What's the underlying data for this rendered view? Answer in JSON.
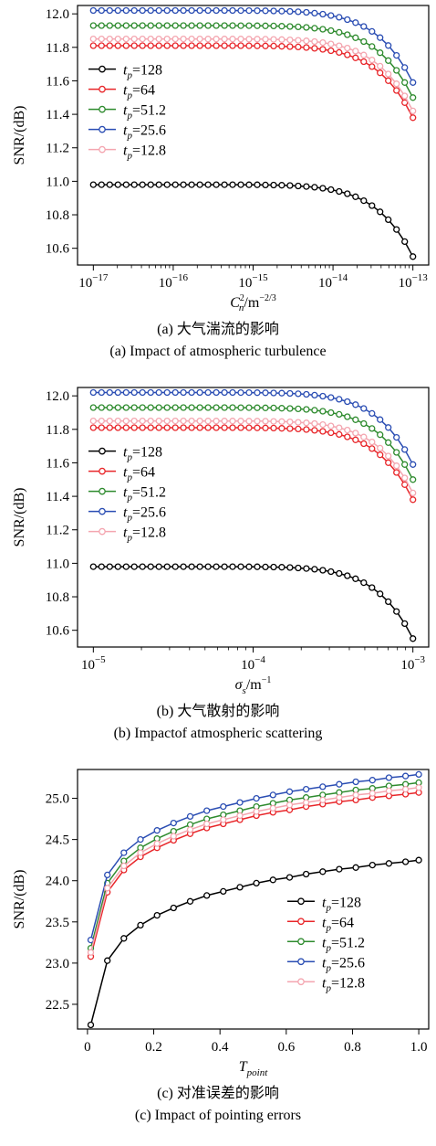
{
  "series_styles": [
    {
      "color": "#000000"
    },
    {
      "color": "#e8262a"
    },
    {
      "color": "#2e8b2e"
    },
    {
      "color": "#2a4db3"
    },
    {
      "color": "#f4a6b0"
    }
  ],
  "chart_data": [
    {
      "type": "line",
      "xscale": "log",
      "x_exp_range": [
        -17,
        -13
      ],
      "x_ticks": [
        -17,
        -16,
        -15,
        -14,
        -13
      ],
      "x_tick_labels": [
        "10",
        "10",
        "10",
        "10",
        "10"
      ],
      "x_tick_exps": [
        "−17",
        "−16",
        "−15",
        "−14",
        "−13"
      ],
      "ylim": [
        10.5,
        12.05
      ],
      "y_ticks": [
        10.6,
        10.8,
        11.0,
        11.2,
        11.4,
        11.6,
        11.8,
        12.0
      ],
      "y_tick_labels": [
        "10.6",
        "10.8",
        "11.0",
        "11.2",
        "11.4",
        "11.6",
        "11.8",
        "12.0"
      ],
      "ylabel": "SNR/(dB)",
      "xlabel_base": "C",
      "xlabel_sup": "2",
      "xlabel_sub": "n",
      "xlabel_unit": "/m",
      "xlabel_unit_exp": "−2/3",
      "legend_position": "center-left",
      "series": [
        {
          "label": "=128",
          "y_base": 10.98,
          "drop": 0.43
        },
        {
          "label": "=64",
          "y_base": 11.81,
          "drop": 0.43
        },
        {
          "label": "=51.2",
          "y_base": 11.93,
          "drop": 0.43
        },
        {
          "label": "=25.6",
          "y_base": 12.02,
          "drop": 0.43
        },
        {
          "label": "=12.8",
          "y_base": 11.85,
          "drop": 0.43
        }
      ],
      "n_points": 40,
      "caption_cn": "(a) 大气湍流的影响",
      "caption_en": "(a) Impact of atmospheric turbulence"
    },
    {
      "type": "line",
      "xscale": "log",
      "x_exp_range": [
        -5,
        -3
      ],
      "x_ticks": [
        -5,
        -4,
        -3
      ],
      "x_tick_labels": [
        "10",
        "10",
        "10"
      ],
      "x_tick_exps": [
        "−5",
        "−4",
        "−3"
      ],
      "ylim": [
        10.5,
        12.05
      ],
      "y_ticks": [
        10.6,
        10.8,
        11.0,
        11.2,
        11.4,
        11.6,
        11.8,
        12.0
      ],
      "y_tick_labels": [
        "10.6",
        "10.8",
        "11.0",
        "11.2",
        "11.4",
        "11.6",
        "11.8",
        "12.0"
      ],
      "ylabel": "SNR/(dB)",
      "xlabel_base": "σ",
      "xlabel_sub": "s",
      "xlabel_unit": "/m",
      "xlabel_unit_exp": "−1",
      "legend_position": "center-left",
      "series": [
        {
          "label": "=128",
          "y_base": 10.98,
          "drop": 0.43
        },
        {
          "label": "=64",
          "y_base": 11.81,
          "drop": 0.43
        },
        {
          "label": "=51.2",
          "y_base": 11.93,
          "drop": 0.43
        },
        {
          "label": "=25.6",
          "y_base": 12.02,
          "drop": 0.43
        },
        {
          "label": "=12.8",
          "y_base": 11.85,
          "drop": 0.43
        }
      ],
      "n_points": 40,
      "caption_cn": "(b) 大气散射的影响",
      "caption_en": "(b) Impactof atmospheric scattering"
    },
    {
      "type": "line",
      "xscale": "linear",
      "xlim": [
        -0.03,
        1.03
      ],
      "x_ticks": [
        0,
        0.2,
        0.4,
        0.6,
        0.8,
        1.0
      ],
      "x_tick_labels": [
        "0",
        "0.2",
        "0.4",
        "0.6",
        "0.8",
        "1.0"
      ],
      "x": [
        0.01,
        0.06,
        0.11,
        0.16,
        0.21,
        0.26,
        0.31,
        0.36,
        0.41,
        0.46,
        0.51,
        0.56,
        0.61,
        0.66,
        0.71,
        0.76,
        0.81,
        0.86,
        0.91,
        0.96,
        1.0
      ],
      "ylim": [
        22.2,
        25.35
      ],
      "y_ticks": [
        22.5,
        23.0,
        23.5,
        24.0,
        24.5,
        25.0
      ],
      "y_tick_labels": [
        "22.5",
        "23.0",
        "23.5",
        "24.0",
        "24.5",
        "25.0"
      ],
      "ylabel": "SNR/(dB)",
      "xlabel_base": "T",
      "xlabel_sub": "point",
      "legend_position": "lower-right",
      "series": [
        {
          "label": "=128",
          "values": [
            22.25,
            23.03,
            23.3,
            23.46,
            23.58,
            23.67,
            23.75,
            23.82,
            23.87,
            23.92,
            23.97,
            24.01,
            24.04,
            24.08,
            24.11,
            24.14,
            24.16,
            24.19,
            24.21,
            24.23,
            24.25
          ]
        },
        {
          "label": "=64",
          "values": [
            23.08,
            23.86,
            24.13,
            24.29,
            24.4,
            24.49,
            24.57,
            24.64,
            24.69,
            24.74,
            24.79,
            24.83,
            24.86,
            24.9,
            24.93,
            24.96,
            24.98,
            25.01,
            25.03,
            25.05,
            25.07
          ]
        },
        {
          "label": "=51.2",
          "values": [
            23.18,
            23.97,
            24.24,
            24.4,
            24.51,
            24.6,
            24.68,
            24.75,
            24.8,
            24.85,
            24.9,
            24.94,
            24.98,
            25.01,
            25.04,
            25.07,
            25.1,
            25.12,
            25.15,
            25.17,
            25.19
          ]
        },
        {
          "label": "=25.6",
          "values": [
            23.28,
            24.07,
            24.34,
            24.5,
            24.61,
            24.7,
            24.78,
            24.85,
            24.9,
            24.95,
            25.0,
            25.04,
            25.08,
            25.11,
            25.14,
            25.17,
            25.2,
            25.22,
            25.25,
            25.27,
            25.29
          ]
        },
        {
          "label": "=12.8",
          "values": [
            23.13,
            23.91,
            24.18,
            24.34,
            24.45,
            24.54,
            24.62,
            24.69,
            24.74,
            24.79,
            24.84,
            24.88,
            24.92,
            24.95,
            24.98,
            25.01,
            25.04,
            25.06,
            25.09,
            25.11,
            25.13
          ]
        }
      ],
      "caption_cn": "(c) 对准误差的影响",
      "caption_en": "(c) Impact of pointing errors"
    }
  ],
  "legend_var": "t",
  "legend_sub": "p"
}
